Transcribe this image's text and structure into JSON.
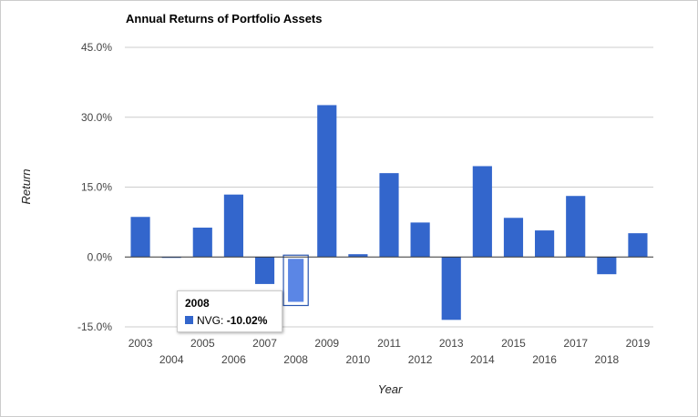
{
  "chart_data": {
    "type": "bar",
    "title": "Annual Returns of Portfolio Assets",
    "xlabel": "Year",
    "ylabel": "Return",
    "categories": [
      "2003",
      "2004",
      "2005",
      "2006",
      "2007",
      "2008",
      "2009",
      "2010",
      "2011",
      "2012",
      "2013",
      "2014",
      "2015",
      "2016",
      "2017",
      "2018",
      "2019"
    ],
    "series": [
      {
        "name": "NVG",
        "values": [
          8.6,
          -0.1,
          6.3,
          13.4,
          -5.8,
          -10.02,
          32.6,
          0.6,
          18.0,
          7.4,
          -13.5,
          19.5,
          8.4,
          5.7,
          13.1,
          -3.7,
          5.1
        ]
      }
    ],
    "ylim": [
      -15,
      45
    ],
    "yticks": [
      -15,
      0,
      15,
      30,
      45
    ],
    "ytick_labels": [
      "-15.0%",
      "0.0%",
      "15.0%",
      "30.0%",
      "45.0%"
    ],
    "grid": true,
    "bar_color": "#3366cc",
    "highlight_color": "#5b86e5",
    "tooltip": {
      "category": "2008",
      "series": "NVG",
      "separator": ":",
      "value_label": "-10.02%"
    }
  }
}
